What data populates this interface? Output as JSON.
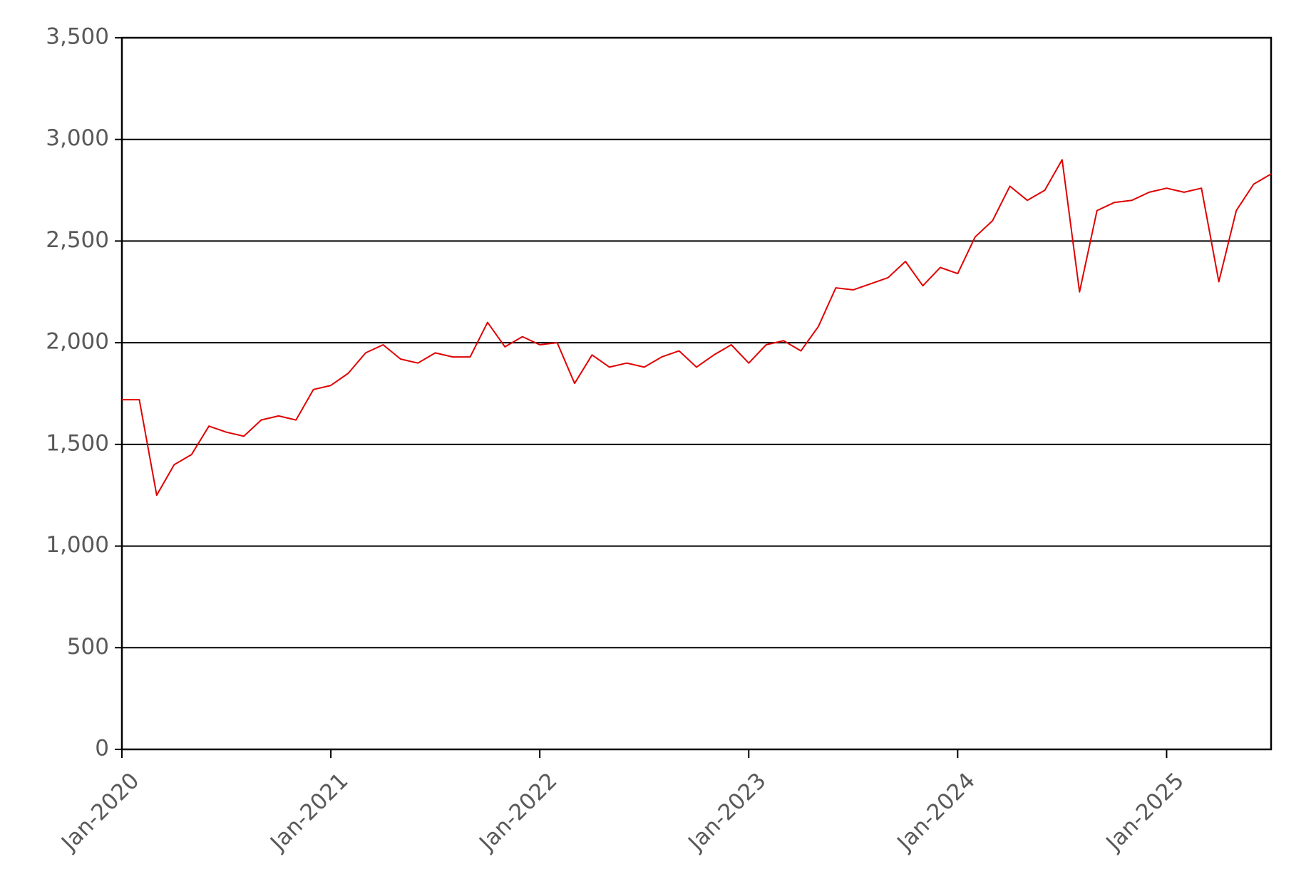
{
  "chart_data": {
    "type": "line",
    "x": [
      "2020-01",
      "2020-02",
      "2020-03",
      "2020-04",
      "2020-05",
      "2020-06",
      "2020-07",
      "2020-08",
      "2020-09",
      "2020-10",
      "2020-11",
      "2020-12",
      "2021-01",
      "2021-02",
      "2021-03",
      "2021-04",
      "2021-05",
      "2021-06",
      "2021-07",
      "2021-08",
      "2021-09",
      "2021-10",
      "2021-11",
      "2021-12",
      "2022-01",
      "2022-02",
      "2022-03",
      "2022-04",
      "2022-05",
      "2022-06",
      "2022-07",
      "2022-08",
      "2022-09",
      "2022-10",
      "2022-11",
      "2022-12",
      "2023-01",
      "2023-02",
      "2023-03",
      "2023-04",
      "2023-05",
      "2023-06",
      "2023-07",
      "2023-08",
      "2023-09",
      "2023-10",
      "2023-11",
      "2023-12",
      "2024-01",
      "2024-02",
      "2024-03",
      "2024-04",
      "2024-05",
      "2024-06",
      "2024-07",
      "2024-08",
      "2024-09",
      "2024-10",
      "2024-11",
      "2024-12",
      "2025-01",
      "2025-02",
      "2025-03",
      "2025-04",
      "2025-05",
      "2025-06",
      "2025-07"
    ],
    "series": [
      {
        "color": "#e00000",
        "values": [
          1720,
          1720,
          1250,
          1400,
          1450,
          1590,
          1560,
          1540,
          1620,
          1640,
          1620,
          1770,
          1790,
          1850,
          1950,
          1990,
          1920,
          1900,
          1950,
          1930,
          1930,
          2100,
          1980,
          2030,
          1990,
          2000,
          1800,
          1940,
          1880,
          1900,
          1880,
          1930,
          1960,
          1880,
          1940,
          1990,
          1900,
          1990,
          2010,
          1960,
          2080,
          2270,
          2260,
          2290,
          2320,
          2400,
          2280,
          2370,
          2340,
          2520,
          2600,
          2770,
          2700,
          2750,
          2900,
          2250,
          2650,
          2690,
          2700,
          2740,
          2760,
          2740,
          2760,
          2300,
          2650,
          2780,
          2830
        ]
      }
    ],
    "xlim": [
      "2020-01",
      "2025-07"
    ],
    "xticks": [
      {
        "value": "2020-01",
        "label": "Jan-2020"
      },
      {
        "value": "2021-01",
        "label": "Jan-2021"
      },
      {
        "value": "2022-01",
        "label": "Jan-2022"
      },
      {
        "value": "2023-01",
        "label": "Jan-2023"
      },
      {
        "value": "2024-01",
        "label": "Jan-2024"
      },
      {
        "value": "2025-01",
        "label": "Jan-2025"
      }
    ],
    "ylim": [
      0,
      3500
    ],
    "yticks": [
      0,
      {
        "value": 500,
        "label": "500"
      },
      {
        "value": 1000,
        "label": "1,000"
      },
      {
        "value": 1500,
        "label": "1,500"
      },
      {
        "value": 2000,
        "label": "2,000"
      },
      {
        "value": 2500,
        "label": "2,500"
      },
      {
        "value": 3000,
        "label": "3,000"
      },
      {
        "value": 3500,
        "label": "3,500"
      }
    ],
    "grid": true
  }
}
